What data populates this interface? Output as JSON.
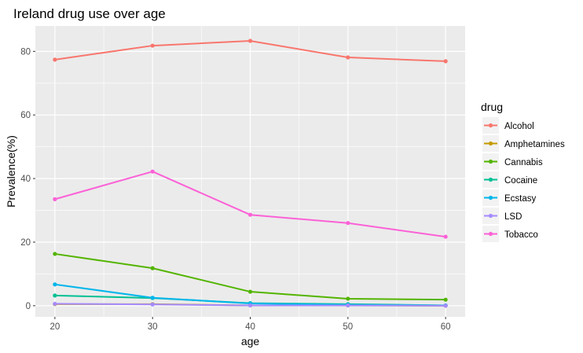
{
  "chart_data": {
    "type": "line",
    "title": "Ireland drug use over age",
    "xlabel": "age",
    "ylabel": "Prevalence(%)",
    "x": [
      20,
      30,
      40,
      50,
      60
    ],
    "xlim": [
      18,
      62
    ],
    "ylim": [
      -3.5,
      88
    ],
    "x_ticks": [
      "20",
      "30",
      "40",
      "50",
      "60"
    ],
    "y_ticks": [
      "0",
      "20",
      "40",
      "60",
      "80"
    ],
    "grid": true,
    "legend_title": "drug",
    "legend_position": "right",
    "series": [
      {
        "name": "Alcohol",
        "color": "#F8766D",
        "values": [
          77.4,
          81.8,
          83.3,
          78.1,
          76.9
        ]
      },
      {
        "name": "Amphetamines",
        "color": "#C49A00",
        "values": [
          0.5,
          0.5,
          0.1,
          0.1,
          0.0
        ]
      },
      {
        "name": "Cannabis",
        "color": "#53B400",
        "values": [
          16.3,
          11.8,
          4.4,
          2.2,
          1.9
        ]
      },
      {
        "name": "Cocaine",
        "color": "#00C094",
        "values": [
          3.2,
          2.4,
          0.8,
          0.5,
          0.1
        ]
      },
      {
        "name": "Ecstasy",
        "color": "#00B6EB",
        "values": [
          6.7,
          2.5,
          0.7,
          0.3,
          0.1
        ]
      },
      {
        "name": "LSD",
        "color": "#A58AFF",
        "values": [
          0.6,
          0.4,
          0.1,
          0.1,
          0.0
        ]
      },
      {
        "name": "Tobacco",
        "color": "#FB61D7",
        "values": [
          33.5,
          42.2,
          28.6,
          26.0,
          21.7
        ]
      }
    ]
  }
}
